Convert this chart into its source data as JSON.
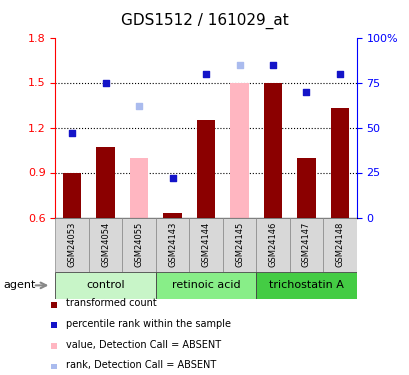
{
  "title": "GDS1512 / 161029_at",
  "samples": [
    "GSM24053",
    "GSM24054",
    "GSM24055",
    "GSM24143",
    "GSM24144",
    "GSM24145",
    "GSM24146",
    "GSM24147",
    "GSM24148"
  ],
  "bar_values": [
    0.9,
    1.07,
    null,
    0.63,
    1.25,
    null,
    1.5,
    1.0,
    1.33
  ],
  "bar_values_absent": [
    null,
    null,
    1.0,
    null,
    null,
    1.5,
    null,
    null,
    null
  ],
  "dot_values_pct": [
    47,
    75,
    null,
    22,
    80,
    null,
    85,
    70,
    80
  ],
  "dot_values_absent_pct": [
    null,
    null,
    62,
    null,
    null,
    85,
    null,
    null,
    null
  ],
  "bar_color": "#8B0000",
  "bar_absent_color": "#FFB6C1",
  "dot_color": "#1414C8",
  "dot_absent_color": "#AABBEE",
  "ylim_left": [
    0.6,
    1.8
  ],
  "ylim_right": [
    0,
    100
  ],
  "yticks_left": [
    0.6,
    0.9,
    1.2,
    1.5,
    1.8
  ],
  "yticks_right": [
    0,
    25,
    50,
    75,
    100
  ],
  "ytick_labels_right": [
    "0",
    "25",
    "50",
    "75",
    "100%"
  ],
  "groups": [
    {
      "label": "control",
      "indices": [
        0,
        1,
        2
      ],
      "color": "#c8f5c8"
    },
    {
      "label": "retinoic acid",
      "indices": [
        3,
        4,
        5
      ],
      "color": "#88ee88"
    },
    {
      "label": "trichostatin A",
      "indices": [
        6,
        7,
        8
      ],
      "color": "#44cc44"
    }
  ],
  "agent_label": "agent",
  "legend_items": [
    {
      "label": "transformed count",
      "color": "#8B0000",
      "type": "square"
    },
    {
      "label": "percentile rank within the sample",
      "color": "#1414C8",
      "type": "square"
    },
    {
      "label": "value, Detection Call = ABSENT",
      "color": "#FFB6C1",
      "type": "square"
    },
    {
      "label": "rank, Detection Call = ABSENT",
      "color": "#AABBEE",
      "type": "square"
    }
  ],
  "bar_width": 0.55,
  "title_fontsize": 11,
  "tick_fontsize": 8,
  "sample_fontsize": 6,
  "group_fontsize": 8,
  "legend_fontsize": 7
}
